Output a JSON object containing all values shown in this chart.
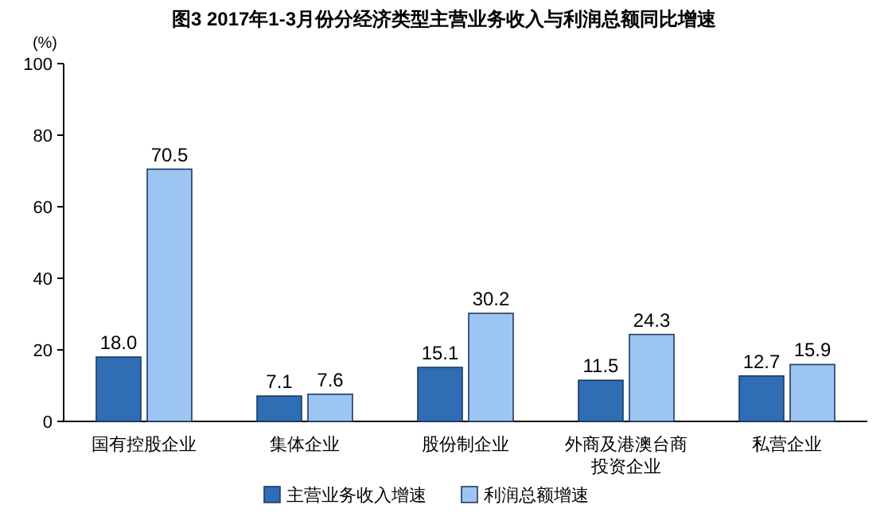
{
  "chart_data": {
    "type": "bar",
    "title": "图3 2017年1-3月份分经济类型主营业务收入与利润总额同比增速",
    "ylabel": "(%)",
    "categories": [
      "国有控股企业",
      "集体企业",
      "股份制企业",
      "外商及港澳台商投资企业",
      "私营企业"
    ],
    "series": [
      {
        "name": "主营业务收入增速",
        "color": "#2f6db5",
        "values": [
          18.0,
          7.1,
          15.1,
          11.5,
          12.7
        ],
        "value_labels": [
          "18.0",
          "7.1",
          "15.1",
          "11.5",
          "12.7"
        ]
      },
      {
        "name": "利润总额增速",
        "color": "#9cc5f2",
        "values": [
          70.5,
          7.6,
          30.2,
          24.3,
          15.9
        ],
        "value_labels": [
          "70.5",
          "7.6",
          "30.2",
          "24.3",
          "15.9"
        ]
      }
    ],
    "ylim": [
      0,
      100
    ],
    "yticks": [
      0,
      20,
      40,
      60,
      80,
      100
    ],
    "legend": "bottom"
  }
}
